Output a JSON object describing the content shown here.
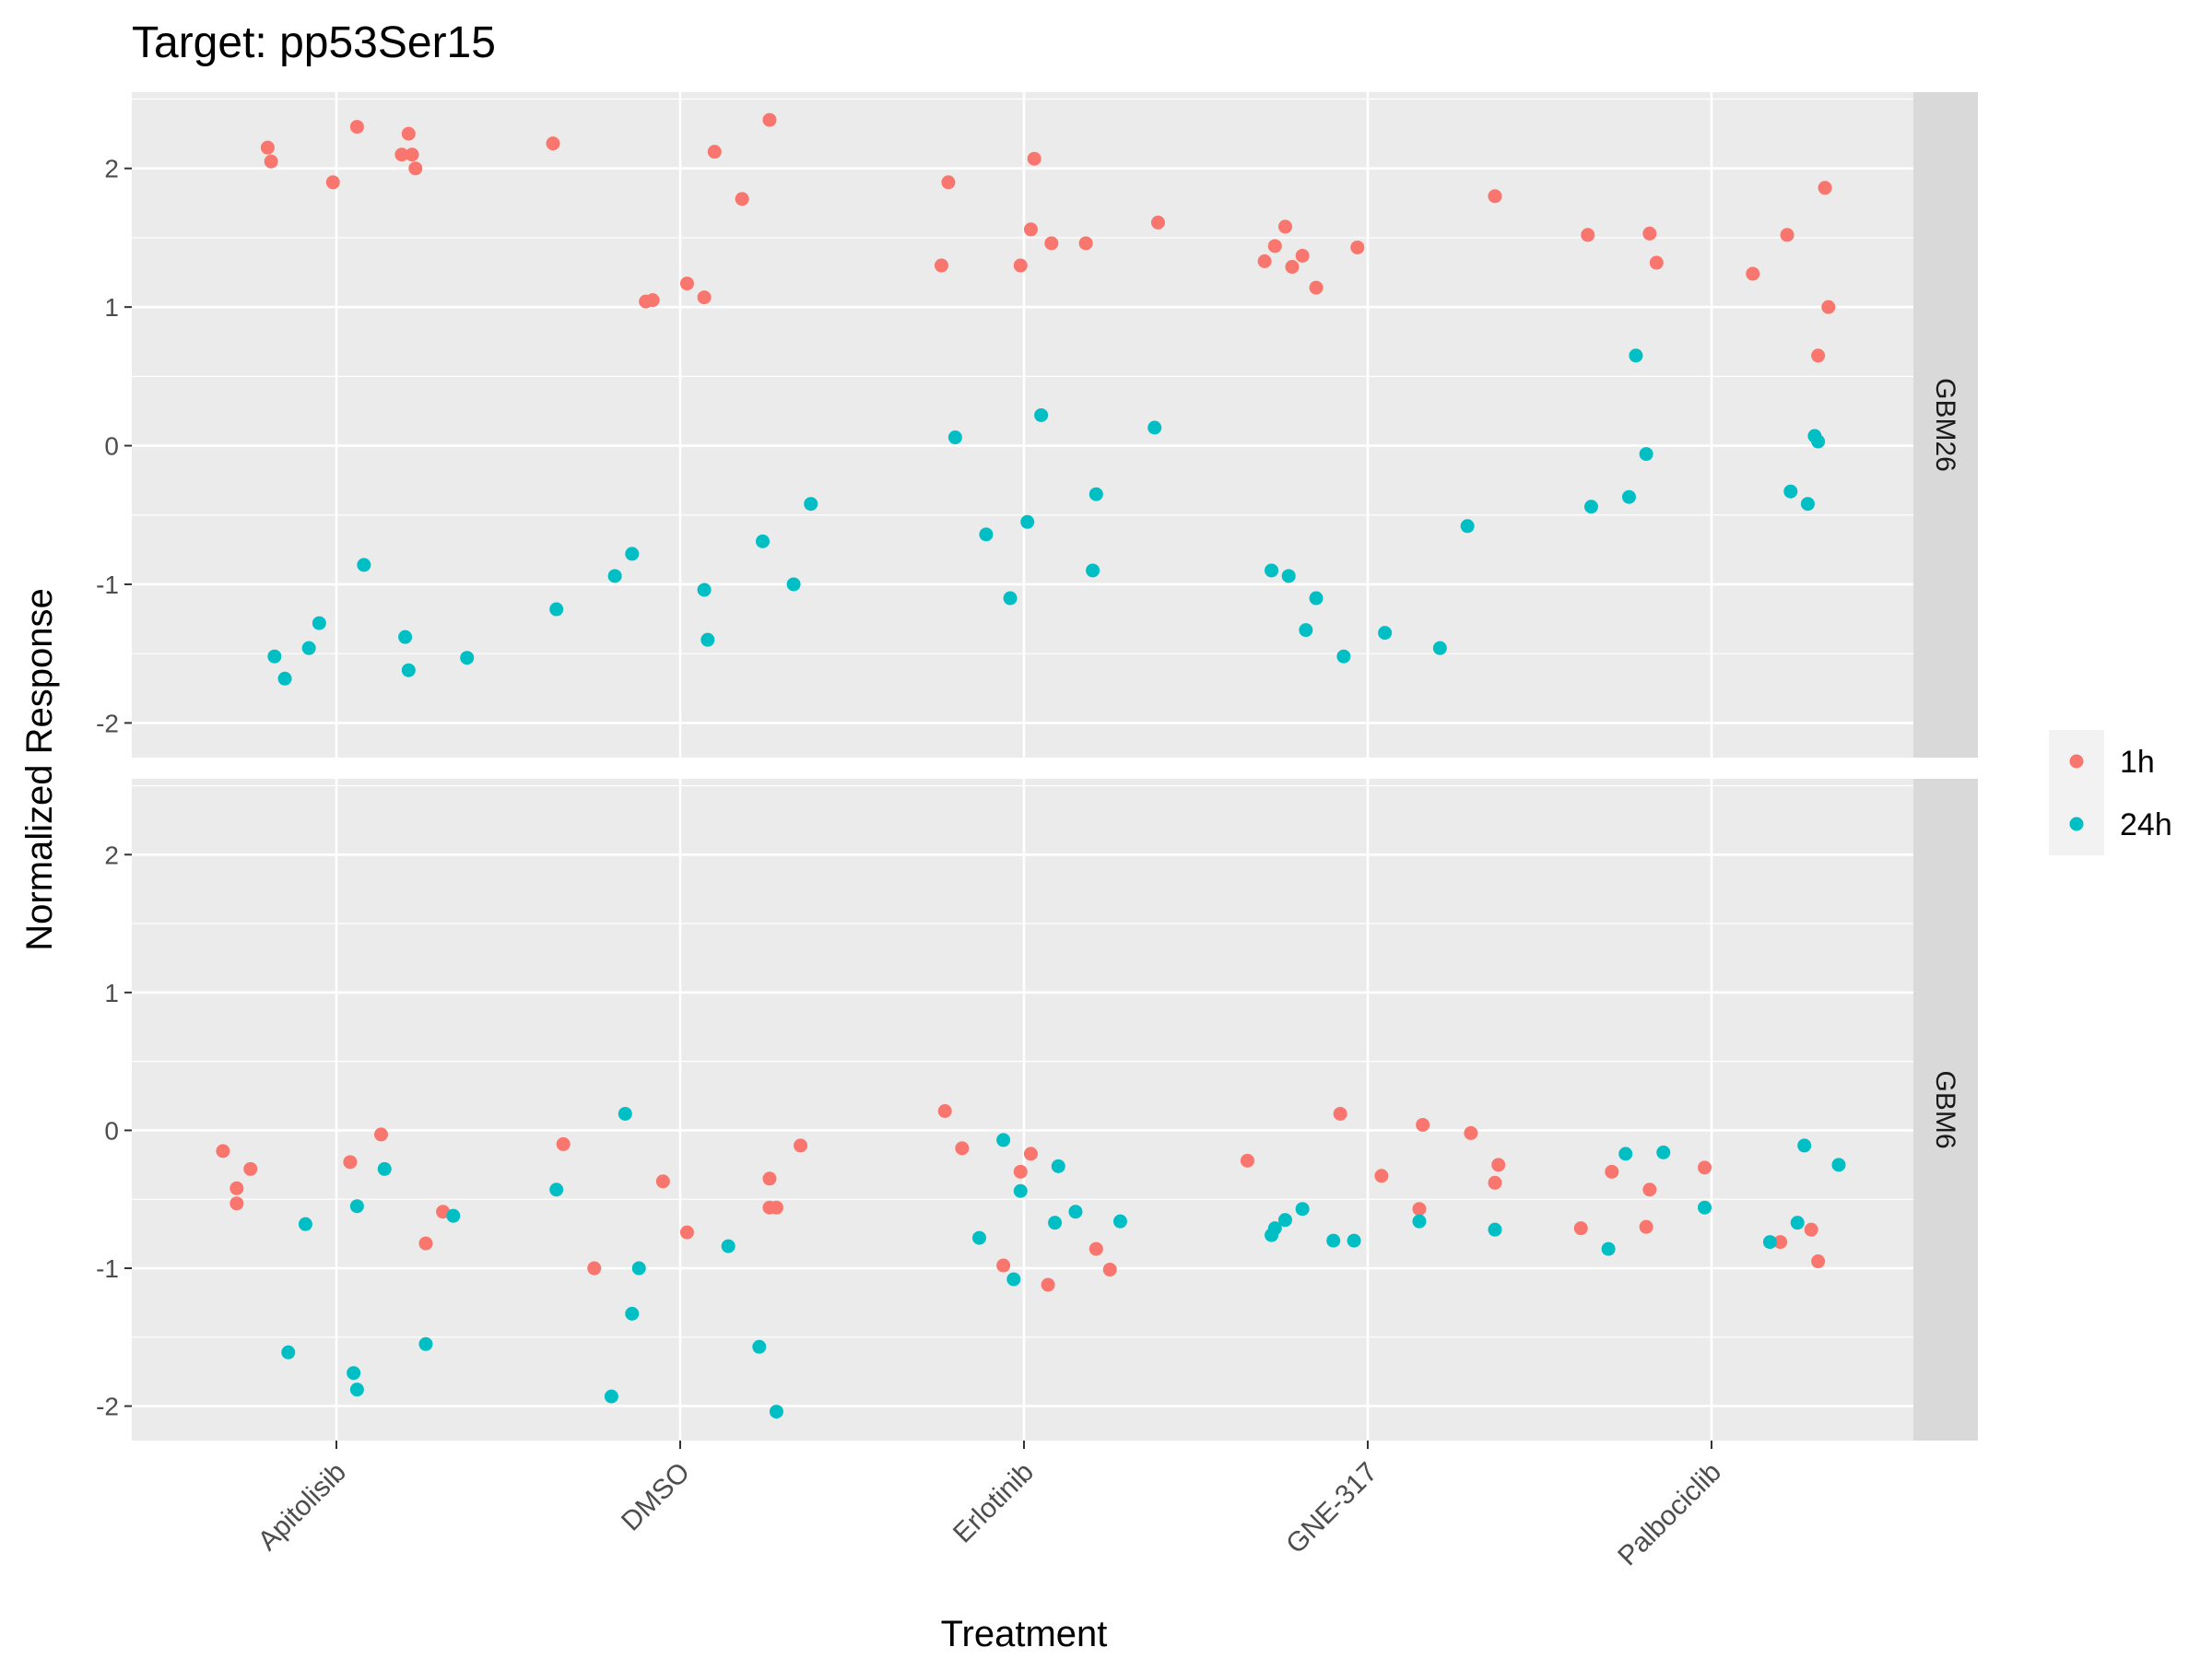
{
  "chart_data": {
    "type": "scatter",
    "title": "Target: pp53Ser15",
    "xlabel": "Treatment",
    "ylabel": "Normalized Response",
    "categories": [
      "Apitolisib",
      "DMSO",
      "Erlotinib",
      "GNE-317",
      "Palbociclib"
    ],
    "ylim": [
      -2.25,
      2.55
    ],
    "yticks": [
      -2,
      -1,
      0,
      1,
      2
    ],
    "grid": true,
    "legend": {
      "position": "right",
      "entries": [
        {
          "name": "1h",
          "color": "#F8766D"
        },
        {
          "name": "24h",
          "color": "#00BFC4"
        }
      ]
    },
    "facets": [
      {
        "label": "GBM26",
        "series": [
          {
            "name": "1h",
            "color": "#F8766D",
            "points": [
              [
                -0.2,
                2.15
              ],
              [
                -0.19,
                2.05
              ],
              [
                -0.01,
                1.9
              ],
              [
                0.06,
                2.3
              ],
              [
                0.19,
                2.1
              ],
              [
                0.21,
                2.25
              ],
              [
                0.22,
                2.1
              ],
              [
                0.23,
                2.0
              ],
              [
                0.63,
                2.18
              ],
              [
                0.9,
                1.04
              ],
              [
                0.92,
                1.05
              ],
              [
                1.02,
                1.17
              ],
              [
                1.07,
                1.07
              ],
              [
                1.1,
                2.12
              ],
              [
                1.18,
                1.78
              ],
              [
                1.26,
                2.35
              ],
              [
                1.76,
                1.3
              ],
              [
                1.78,
                1.9
              ],
              [
                1.99,
                1.3
              ],
              [
                2.02,
                1.56
              ],
              [
                2.03,
                2.07
              ],
              [
                2.08,
                1.46
              ],
              [
                2.18,
                1.46
              ],
              [
                2.39,
                1.61
              ],
              [
                2.7,
                1.33
              ],
              [
                2.73,
                1.44
              ],
              [
                2.76,
                1.58
              ],
              [
                2.78,
                1.29
              ],
              [
                2.81,
                1.37
              ],
              [
                2.85,
                1.14
              ],
              [
                2.97,
                1.43
              ],
              [
                3.37,
                1.8
              ],
              [
                3.64,
                1.52
              ],
              [
                3.82,
                1.53
              ],
              [
                3.84,
                1.32
              ],
              [
                4.12,
                1.24
              ],
              [
                4.22,
                1.52
              ],
              [
                4.31,
                0.65
              ],
              [
                4.33,
                1.86
              ],
              [
                4.34,
                1.0
              ]
            ]
          },
          {
            "name": "24h",
            "color": "#00BFC4",
            "points": [
              [
                -0.18,
                -1.52
              ],
              [
                -0.15,
                -1.68
              ],
              [
                -0.08,
                -1.46
              ],
              [
                -0.05,
                -1.28
              ],
              [
                0.08,
                -0.86
              ],
              [
                0.2,
                -1.38
              ],
              [
                0.21,
                -1.62
              ],
              [
                0.38,
                -1.53
              ],
              [
                0.64,
                -1.18
              ],
              [
                0.81,
                -0.94
              ],
              [
                0.86,
                -0.78
              ],
              [
                1.07,
                -1.04
              ],
              [
                1.08,
                -1.4
              ],
              [
                1.24,
                -0.69
              ],
              [
                1.33,
                -1.0
              ],
              [
                1.38,
                -0.42
              ],
              [
                1.8,
                0.06
              ],
              [
                1.89,
                -0.64
              ],
              [
                1.96,
                -1.1
              ],
              [
                2.01,
                -0.55
              ],
              [
                2.05,
                0.22
              ],
              [
                2.2,
                -0.9
              ],
              [
                2.21,
                -0.35
              ],
              [
                2.38,
                0.13
              ],
              [
                2.72,
                -0.9
              ],
              [
                2.77,
                -0.94
              ],
              [
                2.82,
                -1.33
              ],
              [
                2.85,
                -1.1
              ],
              [
                2.93,
                -1.52
              ],
              [
                3.05,
                -1.35
              ],
              [
                3.21,
                -1.46
              ],
              [
                3.29,
                -0.58
              ],
              [
                3.65,
                -0.44
              ],
              [
                3.76,
                -0.37
              ],
              [
                3.78,
                0.65
              ],
              [
                3.81,
                -0.06
              ],
              [
                4.23,
                -0.33
              ],
              [
                4.28,
                -0.42
              ],
              [
                4.3,
                0.07
              ],
              [
                4.31,
                0.03
              ]
            ]
          }
        ]
      },
      {
        "label": "GBM6",
        "series": [
          {
            "name": "1h",
            "color": "#F8766D",
            "points": [
              [
                -0.33,
                -0.15
              ],
              [
                -0.29,
                -0.42
              ],
              [
                -0.29,
                -0.53
              ],
              [
                -0.25,
                -0.28
              ],
              [
                0.04,
                -0.23
              ],
              [
                0.13,
                -0.03
              ],
              [
                0.26,
                -0.82
              ],
              [
                0.31,
                -0.59
              ],
              [
                0.66,
                -0.1
              ],
              [
                0.75,
                -1.0
              ],
              [
                0.95,
                -0.37
              ],
              [
                1.02,
                -0.74
              ],
              [
                1.26,
                -0.56
              ],
              [
                1.26,
                -0.35
              ],
              [
                1.28,
                -0.56
              ],
              [
                1.35,
                -0.11
              ],
              [
                1.77,
                0.14
              ],
              [
                1.82,
                -0.13
              ],
              [
                1.94,
                -0.98
              ],
              [
                1.99,
                -0.3
              ],
              [
                2.02,
                -0.17
              ],
              [
                2.07,
                -1.12
              ],
              [
                2.21,
                -0.86
              ],
              [
                2.25,
                -1.01
              ],
              [
                2.65,
                -0.22
              ],
              [
                2.92,
                0.12
              ],
              [
                3.04,
                -0.33
              ],
              [
                3.15,
                -0.57
              ],
              [
                3.16,
                0.04
              ],
              [
                3.3,
                -0.02
              ],
              [
                3.37,
                -0.38
              ],
              [
                3.38,
                -0.25
              ],
              [
                3.62,
                -0.71
              ],
              [
                3.71,
                -0.3
              ],
              [
                3.81,
                -0.7
              ],
              [
                3.82,
                -0.43
              ],
              [
                3.98,
                -0.27
              ],
              [
                4.2,
                -0.81
              ],
              [
                4.29,
                -0.72
              ],
              [
                4.31,
                -0.95
              ]
            ]
          },
          {
            "name": "24h",
            "color": "#00BFC4",
            "points": [
              [
                -0.14,
                -1.61
              ],
              [
                -0.09,
                -0.68
              ],
              [
                0.05,
                -1.76
              ],
              [
                0.06,
                -0.55
              ],
              [
                0.06,
                -1.88
              ],
              [
                0.14,
                -0.28
              ],
              [
                0.26,
                -1.55
              ],
              [
                0.34,
                -0.62
              ],
              [
                0.64,
                -0.43
              ],
              [
                0.8,
                -1.93
              ],
              [
                0.84,
                0.12
              ],
              [
                0.86,
                -1.33
              ],
              [
                0.88,
                -1.0
              ],
              [
                1.14,
                -0.84
              ],
              [
                1.23,
                -1.57
              ],
              [
                1.28,
                -2.04
              ],
              [
                1.87,
                -0.78
              ],
              [
                1.94,
                -0.07
              ],
              [
                1.97,
                -1.08
              ],
              [
                1.99,
                -0.44
              ],
              [
                2.09,
                -0.67
              ],
              [
                2.1,
                -0.26
              ],
              [
                2.15,
                -0.59
              ],
              [
                2.28,
                -0.66
              ],
              [
                2.72,
                -0.76
              ],
              [
                2.73,
                -0.71
              ],
              [
                2.76,
                -0.65
              ],
              [
                2.81,
                -0.57
              ],
              [
                2.9,
                -0.8
              ],
              [
                2.96,
                -0.8
              ],
              [
                3.15,
                -0.66
              ],
              [
                3.37,
                -0.72
              ],
              [
                3.7,
                -0.86
              ],
              [
                3.75,
                -0.17
              ],
              [
                3.86,
                -0.16
              ],
              [
                3.98,
                -0.56
              ],
              [
                4.17,
                -0.81
              ],
              [
                4.25,
                -0.67
              ],
              [
                4.27,
                -0.11
              ],
              [
                4.37,
                -0.25
              ]
            ]
          }
        ]
      }
    ]
  }
}
